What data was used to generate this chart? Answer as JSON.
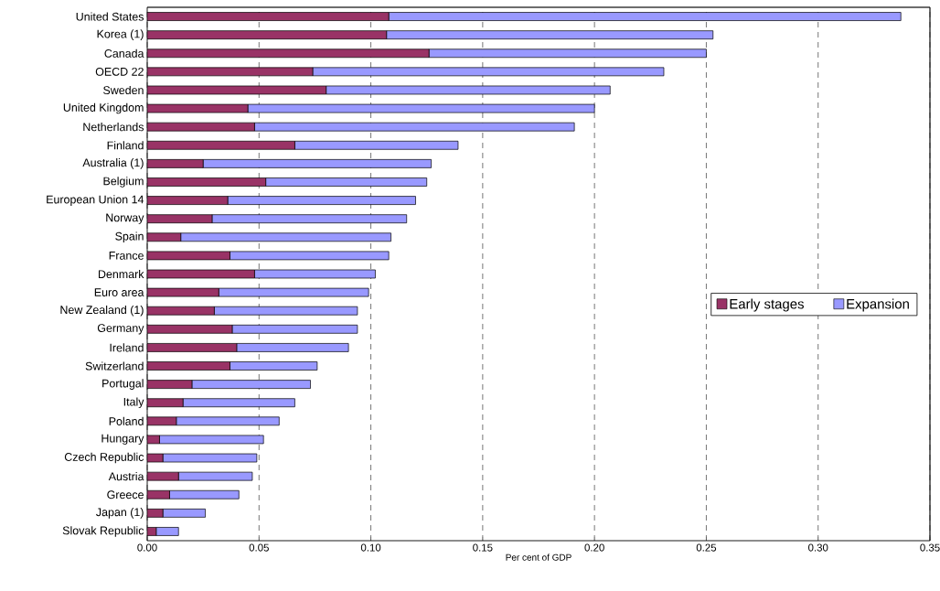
{
  "chart_data": {
    "type": "bar",
    "orientation": "horizontal",
    "stacked": true,
    "xlabel": "Per cent of GDP",
    "categories": [
      "United States",
      "Korea (1)",
      "Canada",
      "OECD 22",
      "Sweden",
      "United Kingdom",
      "Netherlands",
      "Finland",
      "Australia (1)",
      "Belgium",
      "European Union 14",
      "Norway",
      "Spain",
      "France",
      "Denmark",
      "Euro area",
      "New Zealand (1)",
      "Germany",
      "Ireland",
      "Switzerland",
      "Portugal",
      "Italy",
      "Poland",
      "Hungary",
      "Czech Republic",
      "Austria",
      "Greece",
      "Japan (1)",
      "Slovak Republic"
    ],
    "series": [
      {
        "name": "Early stages",
        "color": "#993366",
        "values": [
          0.108,
          0.107,
          0.126,
          0.074,
          0.08,
          0.045,
          0.048,
          0.066,
          0.025,
          0.053,
          0.036,
          0.029,
          0.015,
          0.037,
          0.048,
          0.032,
          0.03,
          0.038,
          0.04,
          0.037,
          0.02,
          0.016,
          0.013,
          0.0055,
          0.007,
          0.014,
          0.01,
          0.007,
          0.004
        ]
      },
      {
        "name": "Expansion",
        "color": "#9999ff",
        "values": [
          0.229,
          0.146,
          0.124,
          0.157,
          0.127,
          0.155,
          0.143,
          0.073,
          0.102,
          0.072,
          0.084,
          0.087,
          0.094,
          0.071,
          0.054,
          0.067,
          0.064,
          0.056,
          0.05,
          0.039,
          0.053,
          0.05,
          0.046,
          0.0465,
          0.042,
          0.033,
          0.031,
          0.019,
          0.01
        ]
      }
    ],
    "xlim": [
      0,
      0.35
    ],
    "xticks": [
      {
        "value": 0,
        "label": "0.00"
      },
      {
        "value": 0.05,
        "label": "0.05"
      },
      {
        "value": 0.1,
        "label": "0.10"
      },
      {
        "value": 0.15,
        "label": "0.15"
      },
      {
        "value": 0.2,
        "label": "0.20"
      },
      {
        "value": 0.25,
        "label": "0.25"
      },
      {
        "value": 0.3,
        "label": "0.30"
      },
      {
        "value": 0.35,
        "label": "0.35"
      }
    ],
    "grid": "x",
    "legend": "right"
  }
}
